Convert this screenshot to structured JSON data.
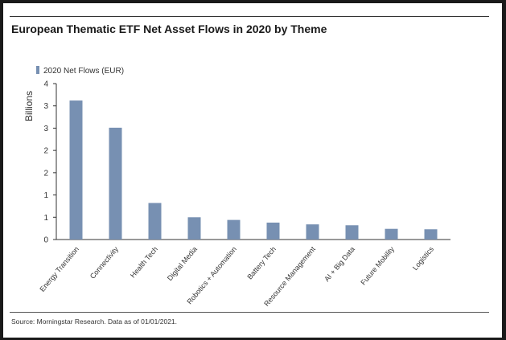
{
  "chart_data": {
    "type": "bar",
    "title": "European Thematic ETF Net Asset Flows in 2020 by Theme",
    "ylabel": "Billions",
    "xlabel": "",
    "categories": [
      "Energy Transition",
      "Connectivity",
      "Health Tech",
      "Digital Media",
      "Robotics + Automation",
      "Battery Tech",
      "Resource Management",
      "AI + Big Data",
      "Future Mobility",
      "Logistics"
    ],
    "series": [
      {
        "name": "2020 Net Flows (EUR)",
        "color": "#7790b2",
        "values": [
          3.12,
          2.51,
          0.82,
          0.5,
          0.44,
          0.38,
          0.34,
          0.32,
          0.24,
          0.23
        ]
      }
    ],
    "ylim": [
      0,
      3.5
    ],
    "yticks": [
      0,
      0.5,
      1,
      1.5,
      2,
      2.5,
      3,
      3.5
    ],
    "ytick_labels": [
      "0",
      "1",
      "1",
      "2",
      "2",
      "3",
      "3",
      "4"
    ],
    "legend_position": "top-left",
    "grid": false
  },
  "source": "Source: Morningstar Research. Data as of 01/01/2021."
}
